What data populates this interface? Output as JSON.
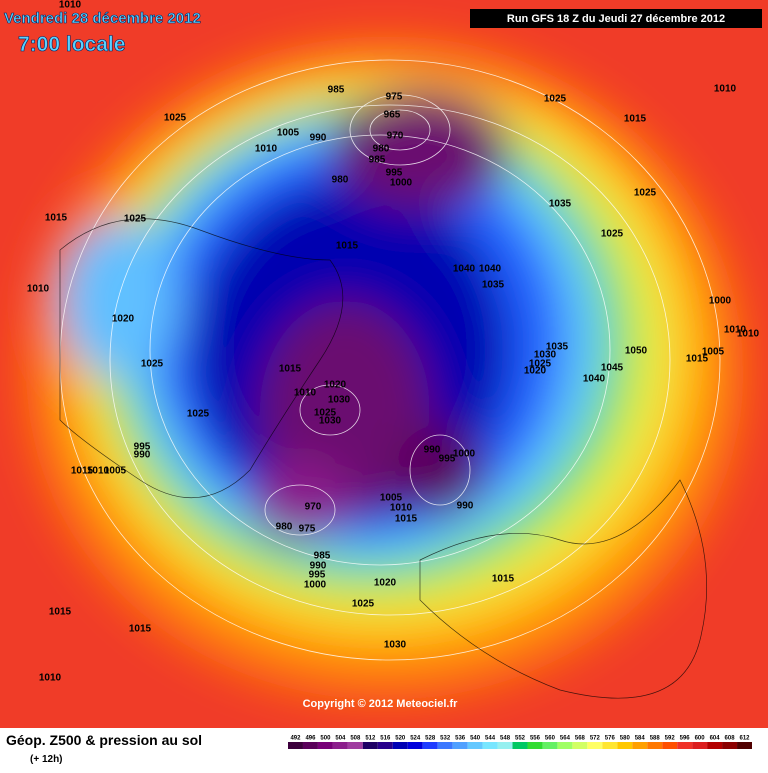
{
  "header": {
    "date": "Vendredi 28 décembre 2012",
    "time": "7:00 locale",
    "run": "Run GFS 18 Z du Jeudi 27 décembre 2012"
  },
  "copyright": "Copyright © 2012 Meteociel.fr",
  "legend": {
    "title": "Géop. Z500 & pression au sol",
    "subtitle": "(+ 12h)",
    "ticks": [
      492,
      496,
      500,
      504,
      508,
      512,
      516,
      520,
      524,
      528,
      532,
      536,
      540,
      544,
      548,
      552,
      556,
      560,
      564,
      568,
      572,
      576,
      580,
      584,
      588,
      592,
      596,
      600,
      604,
      608,
      612
    ],
    "colors": [
      "#3c003c",
      "#5a005a",
      "#780078",
      "#8c1e8c",
      "#a03ca0",
      "#1e0064",
      "#28008c",
      "#0000b4",
      "#0000dc",
      "#1e3cff",
      "#3c78ff",
      "#50a0ff",
      "#64c8ff",
      "#78e6ff",
      "#96f0f0",
      "#00c864",
      "#32dc32",
      "#64f064",
      "#a0ff64",
      "#d2ff64",
      "#ffff64",
      "#ffe632",
      "#ffc800",
      "#ffa000",
      "#ff7800",
      "#ff5000",
      "#f03228",
      "#dc1e1e",
      "#b40000",
      "#8c0000",
      "#500000"
    ]
  },
  "pressure_labels": [
    1010,
    985,
    975,
    965,
    970,
    1005,
    990,
    1010,
    980,
    985,
    995,
    1000,
    980,
    1025,
    1025,
    1010,
    1015,
    1025,
    1035,
    1025,
    1015,
    1025,
    1015,
    1040,
    1040,
    1035,
    1010,
    1020,
    1000,
    1010,
    1010,
    1005,
    1050,
    1035,
    1030,
    1025,
    1020,
    1015,
    1045,
    1040,
    1025,
    1015,
    1020,
    1010,
    1030,
    1025,
    1030,
    1025,
    990,
    995,
    1000,
    995,
    990,
    1015,
    1010,
    1005,
    970,
    1005,
    1010,
    1015,
    990,
    980,
    975,
    985,
    990,
    995,
    1000,
    1020,
    1015,
    1025,
    1015,
    1015,
    1030,
    1010
  ]
}
